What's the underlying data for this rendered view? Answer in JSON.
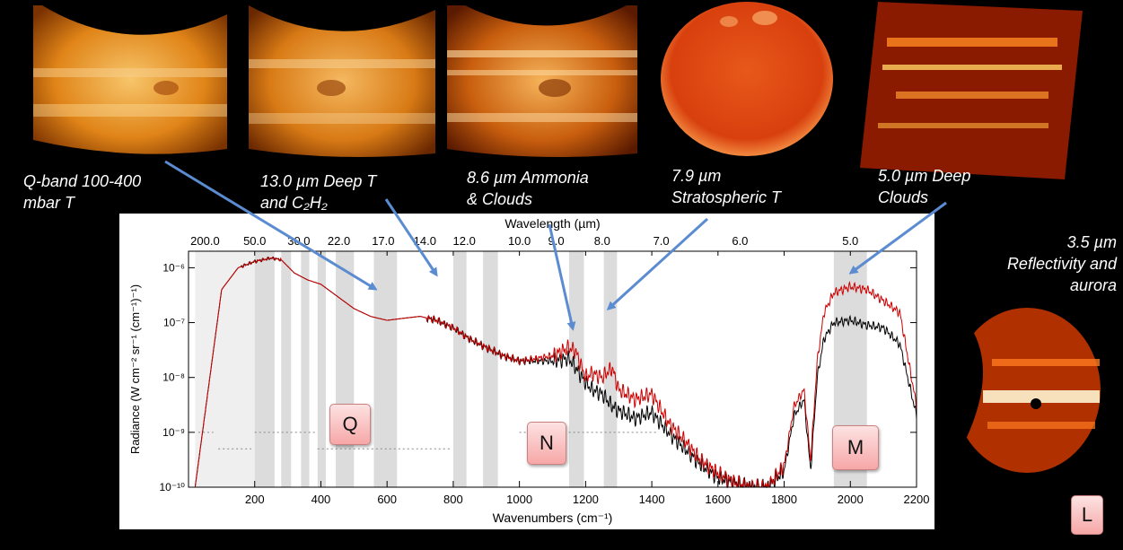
{
  "captions": {
    "q_band": [
      "Q-band 100-400",
      "mbar T"
    ],
    "deep_t": [
      "13.0 µm Deep T",
      "and C₂H₂"
    ],
    "ammonia": [
      "8.6 µm Ammonia",
      "& Clouds"
    ],
    "strat": [
      "7.9 µm",
      "Stratospheric T"
    ],
    "deep_clouds": [
      "5.0 µm Deep",
      "Clouds"
    ],
    "reflectivity": [
      "3.5 µm",
      "Reflectivity and",
      "aurora"
    ]
  },
  "badges": {
    "q": "Q",
    "n": "N",
    "m": "M",
    "l": "L"
  },
  "images": [
    {
      "name": "q-band-jupiter-image",
      "palette": "orange"
    },
    {
      "name": "13-micron-jupiter-image",
      "palette": "orange"
    },
    {
      "name": "8-6-micron-jupiter-image",
      "palette": "orange"
    },
    {
      "name": "7-9-micron-jupiter-image",
      "palette": "red"
    },
    {
      "name": "5-micron-jupiter-image",
      "palette": "red"
    },
    {
      "name": "3-5-micron-jupiter-image",
      "palette": "red"
    }
  ],
  "chart_data": {
    "type": "line",
    "xlabel": "Wavenumbers (cm⁻¹)",
    "ylabel": "Radiance (W cm⁻² sr⁻¹ (cm⁻¹)⁻¹)",
    "top_axis_label": "Wavelength (µm)",
    "xlim": [
      0,
      2200
    ],
    "ylim": [
      1e-10,
      2e-06
    ],
    "y_scale": "log",
    "x_ticks": [
      200,
      400,
      600,
      800,
      1000,
      1200,
      1400,
      1600,
      1800,
      2000,
      2200
    ],
    "x_tick_labels": [
      "200",
      "400",
      "600",
      "800",
      "1000",
      "1200",
      "1400",
      "1600",
      "1800",
      "2000",
      "2200"
    ],
    "y_ticks": [
      1e-10,
      1e-09,
      1e-08,
      1e-07,
      1e-06
    ],
    "y_tick_labels": [
      "10⁻¹⁰",
      "10⁻⁹",
      "10⁻⁸",
      "10⁻⁷",
      "10⁻⁶"
    ],
    "top_ticks_um": [
      200.0,
      50.0,
      30.0,
      22.0,
      17.0,
      14.0,
      12.0,
      10.0,
      9.0,
      8.0,
      7.0,
      6.0,
      5.0
    ],
    "top_tick_labels": [
      "200.0",
      "50.0",
      "30.0",
      "22.0",
      "17.0",
      "14.0",
      "12.0",
      "10.0",
      "9.0",
      "8.0",
      "7.0",
      "6.0",
      "5.0"
    ],
    "bands": [
      [
        20,
        200,
        "light"
      ],
      [
        200,
        260,
        "mid"
      ],
      [
        280,
        310,
        "mid"
      ],
      [
        340,
        365,
        "mid"
      ],
      [
        390,
        415,
        "mid"
      ],
      [
        445,
        500,
        "mid"
      ],
      [
        560,
        630,
        "mid"
      ],
      [
        800,
        840,
        "mid"
      ],
      [
        890,
        935,
        "mid"
      ],
      [
        1150,
        1195,
        "mid"
      ],
      [
        1255,
        1295,
        "mid"
      ],
      [
        1950,
        2050,
        "mid"
      ]
    ],
    "sensitivity_segments": [
      [
        30,
        75,
        1e-09
      ],
      [
        90,
        190,
        5e-10
      ],
      [
        200,
        390,
        1e-09
      ],
      [
        390,
        790,
        5e-10
      ],
      [
        1000,
        1420,
        1e-09
      ]
    ],
    "series": [
      {
        "color": "#000000",
        "x": [
          20,
          100,
          150,
          200,
          250,
          280,
          320,
          360,
          400,
          450,
          500,
          550,
          600,
          650,
          700,
          750,
          800,
          850,
          900,
          950,
          1000,
          1050,
          1100,
          1150,
          1170,
          1200,
          1220,
          1250,
          1280,
          1300,
          1350,
          1400,
          1450,
          1500,
          1550,
          1600,
          1650,
          1700,
          1750,
          1800,
          1830,
          1860,
          1880,
          1900,
          1920,
          1950,
          2000,
          2050,
          2100,
          2150,
          2200
        ],
        "y": [
          1e-10,
          4e-07,
          1e-06,
          1.3e-06,
          1.5e-06,
          1.4e-06,
          8e-07,
          6e-07,
          5e-07,
          3e-07,
          1.8e-07,
          1.3e-07,
          1.1e-07,
          1.2e-07,
          1.3e-07,
          1.1e-07,
          8e-08,
          5e-08,
          3.5e-08,
          2.5e-08,
          2e-08,
          2e-08,
          2e-08,
          2.2e-08,
          1.5e-08,
          8e-09,
          6e-09,
          5e-09,
          3e-09,
          2.5e-09,
          1.8e-09,
          2.3e-09,
          1e-09,
          5e-10,
          2.5e-10,
          1.5e-10,
          1.2e-10,
          1e-10,
          1e-10,
          2e-10,
          2e-09,
          4e-09,
          2e-10,
          1e-08,
          5e-08,
          1e-07,
          1.1e-07,
          9e-08,
          8e-08,
          4e-08,
          2e-09
        ]
      },
      {
        "color": "#cc0000",
        "x": [
          20,
          100,
          150,
          200,
          250,
          280,
          320,
          360,
          400,
          450,
          500,
          550,
          600,
          650,
          700,
          750,
          800,
          850,
          900,
          950,
          1000,
          1050,
          1100,
          1150,
          1170,
          1200,
          1220,
          1250,
          1280,
          1300,
          1350,
          1400,
          1450,
          1500,
          1550,
          1600,
          1650,
          1700,
          1750,
          1800,
          1830,
          1860,
          1880,
          1900,
          1920,
          1950,
          2000,
          2050,
          2100,
          2150,
          2200
        ],
        "y": [
          1e-10,
          4e-07,
          1e-06,
          1.3e-06,
          1.5e-06,
          1.4e-06,
          8e-07,
          6e-07,
          5e-07,
          3e-07,
          1.8e-07,
          1.3e-07,
          1.1e-07,
          1.2e-07,
          1.3e-07,
          1.1e-07,
          8e-08,
          5e-08,
          3.5e-08,
          2.5e-08,
          2e-08,
          2.2e-08,
          2.5e-08,
          3.5e-08,
          3e-08,
          1e-08,
          1.2e-08,
          1e-08,
          1.5e-08,
          6e-09,
          4e-09,
          5e-09,
          1.5e-09,
          7e-10,
          3e-10,
          1.8e-10,
          1.2e-10,
          1e-10,
          1e-10,
          2.5e-10,
          3e-09,
          6e-09,
          3e-10,
          2e-08,
          1.5e-07,
          3.5e-07,
          4.5e-07,
          4e-07,
          2.5e-07,
          1.5e-07,
          3e-09
        ]
      }
    ]
  }
}
